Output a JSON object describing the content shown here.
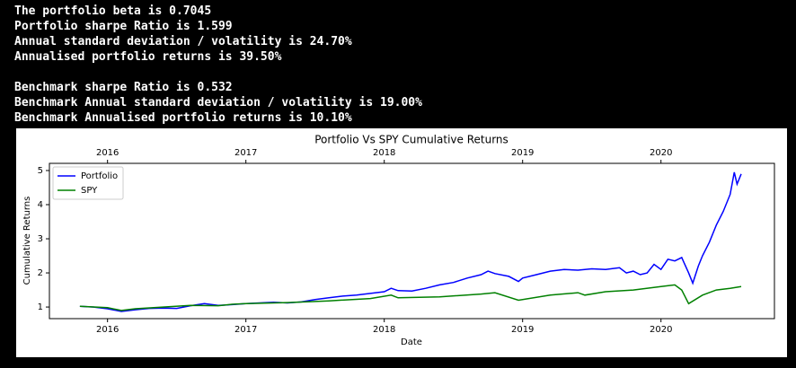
{
  "output_lines": [
    "The portfolio beta is 0.7045",
    "Portfolio sharpe Ratio is 1.599",
    "Annual standard deviation / volatility is 24.70%",
    "Annualised portfolio returns is 39.50%",
    "Benchmark sharpe Ratio is 0.532",
    "Benchmark Annual standard deviation / volatility is 19.00%",
    "Benchmark Annualised portfolio returns is 10.10%"
  ],
  "chart_data": {
    "type": "line",
    "title": "Portfolio Vs SPY Cumulative Returns",
    "x_label": "Date",
    "y_label": "Cumulative Returns",
    "xlim": [
      2015.58,
      2020.82
    ],
    "xticks": [
      2016,
      2017,
      2018,
      2019,
      2020
    ],
    "ylim": [
      0.66,
      5.21
    ],
    "yticks": [
      1,
      2,
      3,
      4,
      5
    ],
    "legend": "upper left",
    "series": [
      {
        "name": "Portfolio",
        "color": "#0000ff",
        "x": [
          2015.8,
          2015.9,
          2016.0,
          2016.1,
          2016.2,
          2016.3,
          2016.4,
          2016.5,
          2016.6,
          2016.7,
          2016.8,
          2016.9,
          2017.0,
          2017.1,
          2017.2,
          2017.3,
          2017.4,
          2017.5,
          2017.6,
          2017.7,
          2017.8,
          2017.9,
          2018.0,
          2018.05,
          2018.1,
          2018.2,
          2018.3,
          2018.4,
          2018.5,
          2018.6,
          2018.7,
          2018.75,
          2018.8,
          2018.9,
          2018.97,
          2019.0,
          2019.1,
          2019.2,
          2019.3,
          2019.4,
          2019.5,
          2019.6,
          2019.7,
          2019.75,
          2019.8,
          2019.85,
          2019.9,
          2019.95,
          2020.0,
          2020.05,
          2020.1,
          2020.15,
          2020.2,
          2020.23,
          2020.27,
          2020.3,
          2020.35,
          2020.4,
          2020.45,
          2020.5,
          2020.53,
          2020.55,
          2020.58
        ],
        "values": [
          1.02,
          1.0,
          0.95,
          0.87,
          0.92,
          0.96,
          0.97,
          0.96,
          1.04,
          1.1,
          1.05,
          1.07,
          1.1,
          1.12,
          1.14,
          1.12,
          1.15,
          1.22,
          1.27,
          1.32,
          1.35,
          1.4,
          1.45,
          1.55,
          1.48,
          1.47,
          1.55,
          1.65,
          1.72,
          1.85,
          1.95,
          2.05,
          1.98,
          1.9,
          1.75,
          1.85,
          1.95,
          2.05,
          2.1,
          2.08,
          2.12,
          2.1,
          2.15,
          2.0,
          2.05,
          1.95,
          2.0,
          2.25,
          2.1,
          2.4,
          2.35,
          2.45,
          2.0,
          1.7,
          2.2,
          2.5,
          2.9,
          3.4,
          3.8,
          4.3,
          4.95,
          4.6,
          4.9
        ]
      },
      {
        "name": "SPY",
        "color": "#008000",
        "x": [
          2015.8,
          2016.0,
          2016.1,
          2016.2,
          2016.4,
          2016.6,
          2016.8,
          2016.9,
          2017.0,
          2017.3,
          2017.6,
          2017.9,
          2018.05,
          2018.1,
          2018.4,
          2018.7,
          2018.8,
          2018.97,
          2019.2,
          2019.4,
          2019.45,
          2019.6,
          2019.8,
          2020.0,
          2020.1,
          2020.15,
          2020.2,
          2020.3,
          2020.4,
          2020.5,
          2020.58
        ],
        "values": [
          1.02,
          0.98,
          0.9,
          0.95,
          1.0,
          1.05,
          1.04,
          1.08,
          1.1,
          1.13,
          1.18,
          1.25,
          1.35,
          1.27,
          1.3,
          1.38,
          1.42,
          1.2,
          1.35,
          1.42,
          1.35,
          1.45,
          1.5,
          1.6,
          1.65,
          1.5,
          1.1,
          1.35,
          1.5,
          1.55,
          1.6
        ]
      }
    ]
  }
}
